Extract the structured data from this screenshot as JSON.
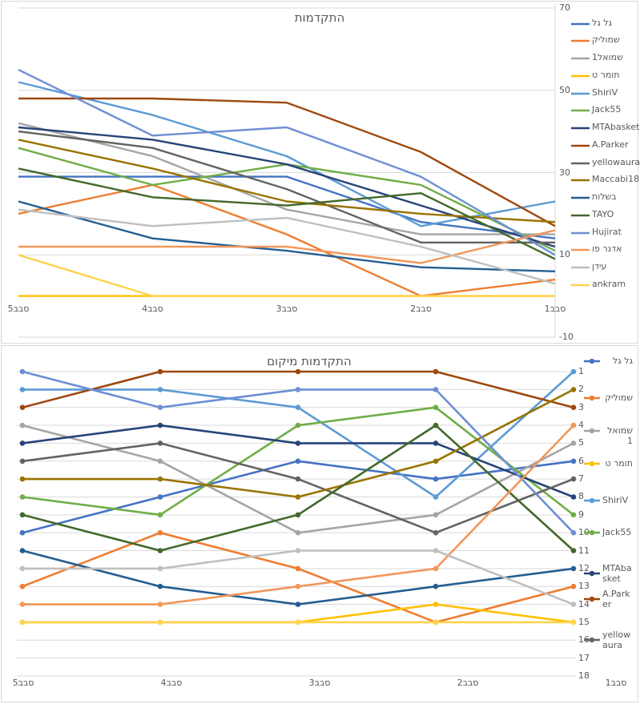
{
  "chart_data": [
    {
      "type": "line",
      "title": "התקדמות",
      "categories": [
        "סבב5",
        "סבב4",
        "סבב3",
        "סבב2",
        "סבב1"
      ],
      "ylabel": "",
      "xlabel": "",
      "ylim": [
        -10,
        70
      ],
      "y_ticks": [
        70,
        50,
        30,
        10,
        -10
      ],
      "y_axis_side": "right",
      "x_axis_crosses_at": 0,
      "grid": "on",
      "legend_position": "right",
      "markers": false,
      "series": [
        {
          "name": "גל גל",
          "color": "#4472C4",
          "values": [
            29,
            29,
            29,
            18,
            14
          ]
        },
        {
          "name": "שמוליק",
          "color": "#ED7D31",
          "values": [
            20,
            27,
            15,
            0,
            4
          ]
        },
        {
          "name": "שמואל1",
          "color": "#A5A5A5",
          "values": [
            42,
            34,
            21,
            15,
            15
          ]
        },
        {
          "name": "תומר ט",
          "color": "#FFC000",
          "values": [
            0,
            0,
            0,
            0,
            0
          ]
        },
        {
          "name": "ShiriV",
          "color": "#5B9BD5",
          "values": [
            52,
            44,
            34,
            17,
            23
          ]
        },
        {
          "name": "Jack55",
          "color": "#70AD47",
          "values": [
            36,
            27,
            32,
            27,
            11
          ]
        },
        {
          "name": "MTAbasket",
          "color": "#264478",
          "values": [
            41,
            38,
            32,
            22,
            12
          ]
        },
        {
          "name": "A.Parker",
          "color": "#9E480E",
          "values": [
            48,
            48,
            47,
            35,
            17
          ]
        },
        {
          "name": "yellowaura",
          "color": "#636363",
          "values": [
            40,
            36,
            26,
            13,
            13
          ]
        },
        {
          "name": "Maccabi18",
          "color": "#997300",
          "values": [
            38,
            31,
            23,
            20,
            18
          ]
        },
        {
          "name": "בשלות",
          "color": "#255E91",
          "values": [
            23,
            14,
            11,
            7,
            6
          ]
        },
        {
          "name": "TAYO",
          "color": "#43682B",
          "values": [
            31,
            24,
            22,
            25,
            9
          ]
        },
        {
          "name": "Hujirat",
          "color": "#6D8FD4",
          "values": [
            55,
            39,
            41,
            29,
            10
          ]
        },
        {
          "name": "אדגר פו",
          "color": "#F1975A",
          "values": [
            12,
            12,
            12,
            8,
            16
          ]
        },
        {
          "name": "עידן",
          "color": "#BFBFBF",
          "values": [
            21,
            17,
            19,
            12,
            3
          ]
        },
        {
          "name": "ankram",
          "color": "#FFD24D",
          "values": [
            10,
            0,
            0,
            0,
            0
          ]
        }
      ]
    },
    {
      "type": "line",
      "title": "התקדמות מיקום",
      "categories": [
        "סבב5",
        "סבב4",
        "סבב3",
        "סבב2",
        "סבב1"
      ],
      "ylabel": "",
      "xlabel": "",
      "ylim": [
        1,
        18
      ],
      "y_ticks": [
        1,
        2,
        3,
        4,
        5,
        6,
        7,
        8,
        9,
        10,
        11,
        12,
        13,
        14,
        15,
        16,
        17,
        18
      ],
      "y_axis_side": "right",
      "y_reversed": true,
      "grid": "on",
      "legend_position": "right",
      "legend_visible_count": 9,
      "markers": true,
      "series": [
        {
          "name": "גל גל",
          "color": "#4472C4",
          "values": [
            10,
            8,
            6,
            7,
            6
          ]
        },
        {
          "name": "שמוליק",
          "color": "#ED7D31",
          "values": [
            13,
            10,
            12,
            15,
            13
          ]
        },
        {
          "name": "שמואל1",
          "color": "#A5A5A5",
          "values": [
            4,
            6,
            10,
            9,
            5
          ]
        },
        {
          "name": "תומר ט",
          "color": "#FFC000",
          "values": [
            15,
            15,
            15,
            14,
            15
          ]
        },
        {
          "name": "ShiriV",
          "color": "#5B9BD5",
          "values": [
            2,
            2,
            3,
            8,
            1
          ]
        },
        {
          "name": "Jack55",
          "color": "#70AD47",
          "values": [
            8,
            9,
            4,
            3,
            9
          ]
        },
        {
          "name": "MTAbasket",
          "color": "#264478",
          "values": [
            5,
            4,
            5,
            5,
            8
          ]
        },
        {
          "name": "A.Parker",
          "color": "#9E480E",
          "values": [
            3,
            1,
            1,
            1,
            3
          ]
        },
        {
          "name": "yellowaura",
          "color": "#636363",
          "values": [
            6,
            5,
            7,
            10,
            7
          ]
        },
        {
          "name": "Maccabi18",
          "color": "#997300",
          "values": [
            7,
            7,
            8,
            6,
            2
          ]
        },
        {
          "name": "בשלות",
          "color": "#255E91",
          "values": [
            11,
            13,
            14,
            13,
            12
          ]
        },
        {
          "name": "TAYO",
          "color": "#43682B",
          "values": [
            9,
            11,
            9,
            4,
            11
          ]
        },
        {
          "name": "Hujirat",
          "color": "#6D8FD4",
          "values": [
            1,
            3,
            2,
            2,
            10
          ]
        },
        {
          "name": "אדגר פו",
          "color": "#F1975A",
          "values": [
            14,
            14,
            13,
            12,
            4
          ]
        },
        {
          "name": "עידן",
          "color": "#BFBFBF",
          "values": [
            12,
            12,
            11,
            11,
            14
          ]
        },
        {
          "name": "ankram",
          "color": "#FFD24D",
          "values": [
            15,
            15,
            15,
            15,
            15
          ]
        }
      ]
    }
  ],
  "colors": {
    "grid": "#D9D9D9",
    "axis": "#BFBFBF",
    "text": "#595959"
  }
}
